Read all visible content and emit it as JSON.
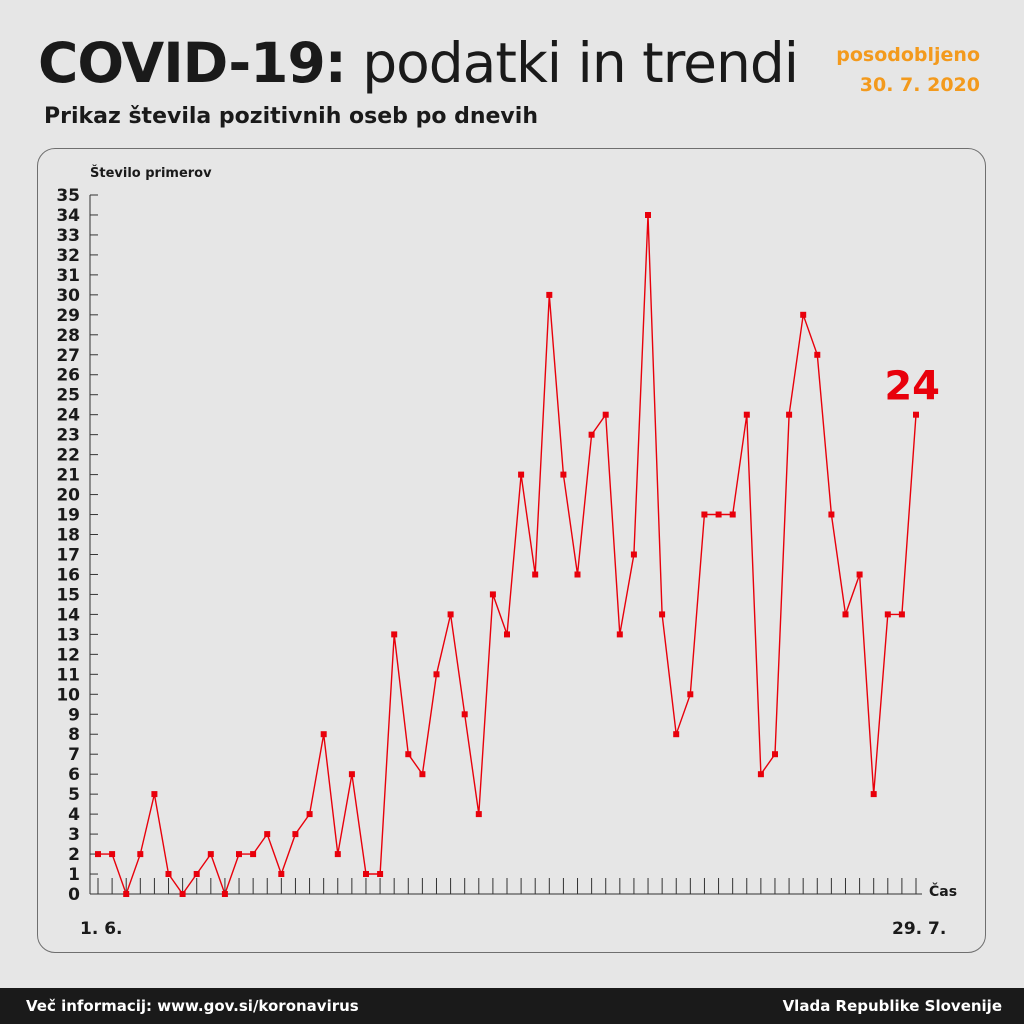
{
  "header": {
    "title_bold": "COVID-19:",
    "title_light": "podatki in trendi",
    "subtitle": "Prikaz števila pozitivnih oseb po dnevih",
    "updated_label": "posodobljeno",
    "updated_date": "30. 7. 2020"
  },
  "colors": {
    "line": "#e8000b",
    "accent": "#f39a1d",
    "text": "#1a1a1a",
    "background": "#e6e6e6",
    "footer": "#1a1a1a"
  },
  "chart_data": {
    "type": "line",
    "title": "Prikaz števila pozitivnih oseb po dnevih",
    "ylabel": "Število primerov",
    "xlabel": "Čas",
    "ylim": [
      0,
      35
    ],
    "y_ticks": [
      0,
      1,
      2,
      3,
      4,
      5,
      6,
      7,
      8,
      9,
      10,
      11,
      12,
      13,
      14,
      15,
      16,
      17,
      18,
      19,
      20,
      21,
      22,
      23,
      24,
      25,
      26,
      27,
      28,
      29,
      30,
      31,
      32,
      33,
      34,
      35
    ],
    "x_start_label": "1. 6.",
    "x_end_label": "29. 7.",
    "grid": false,
    "last_value_label": "24",
    "series": [
      {
        "values": [
          2,
          2,
          0,
          2,
          5,
          1,
          0,
          1,
          2,
          0,
          2,
          2,
          3,
          1,
          3,
          4,
          8,
          2,
          6,
          1,
          1,
          13,
          7,
          6,
          11,
          14,
          9,
          4,
          15,
          13,
          21,
          16,
          30,
          21,
          16,
          23,
          24,
          13,
          17,
          34,
          14,
          8,
          10,
          19,
          19,
          19,
          24,
          6,
          7,
          24,
          29,
          27,
          19,
          14,
          16,
          5,
          14,
          14,
          24
        ]
      }
    ]
  },
  "footer": {
    "info": "Več informacij: www.gov.si/koronavirus",
    "org": "Vlada Republike Slovenije"
  }
}
